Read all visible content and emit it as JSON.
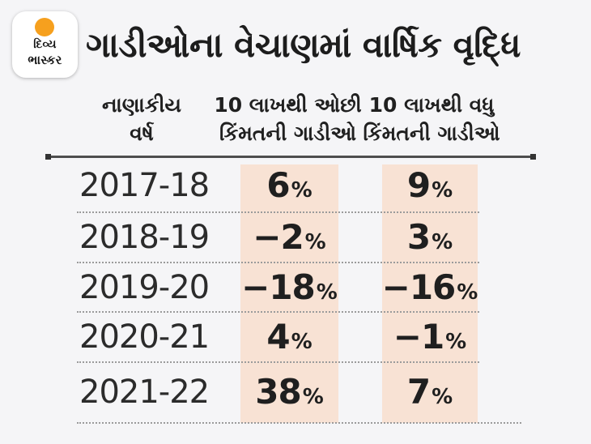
{
  "brand": {
    "name_line1": "દિવ્ય",
    "name_line2": "ભાસ્કર"
  },
  "header": {
    "title": "ગાડીઓના વેચાણમાં વાર્ષિક વૃદ્ધિ"
  },
  "table": {
    "percent_sign": "%",
    "columns": [
      {
        "line1": "નાણાકીય",
        "line2": "વર્ષ"
      },
      {
        "line1": "10 લાખથી ઓછી",
        "line2": "કિંમતની ગાડીઓ"
      },
      {
        "line1": "10 લાખથી વધુ",
        "line2": "કિંમતની ગાડીઓ"
      }
    ],
    "rows": [
      {
        "year": "2017-18",
        "low": "6",
        "high": "9"
      },
      {
        "year": "2018-19",
        "low": "−2",
        "high": "3"
      },
      {
        "year": "2019-20",
        "low": "−18",
        "high": "−16"
      },
      {
        "year": "2020-21",
        "low": "4",
        "high": "−1"
      },
      {
        "year": "2021-22",
        "low": "38",
        "high": "7"
      }
    ]
  },
  "chart_data": {
    "type": "table",
    "title": "ગાડીઓના વેચાણમાં વાર્ષિક વૃદ્ધિ",
    "columns": [
      "નાણાકીય વર્ષ",
      "10 લાખથી ઓછી કિંમતની ગાડીઓ",
      "10 લાખથી વધુ કિંમતની ગાડીઓ"
    ],
    "unit": "percent",
    "rows": [
      {
        "year": "2017-18",
        "below_10_lakh_pct": 6,
        "above_10_lakh_pct": 9
      },
      {
        "year": "2018-19",
        "below_10_lakh_pct": -2,
        "above_10_lakh_pct": 3
      },
      {
        "year": "2019-20",
        "below_10_lakh_pct": -18,
        "above_10_lakh_pct": -16
      },
      {
        "year": "2020-21",
        "below_10_lakh_pct": 4,
        "above_10_lakh_pct": -1
      },
      {
        "year": "2021-22",
        "below_10_lakh_pct": 38,
        "above_10_lakh_pct": 7
      }
    ]
  },
  "colors": {
    "background": "#f5f5f7",
    "stripe": "#f8e2d4",
    "logo_orange": "#f6a01e",
    "text": "#242424"
  }
}
